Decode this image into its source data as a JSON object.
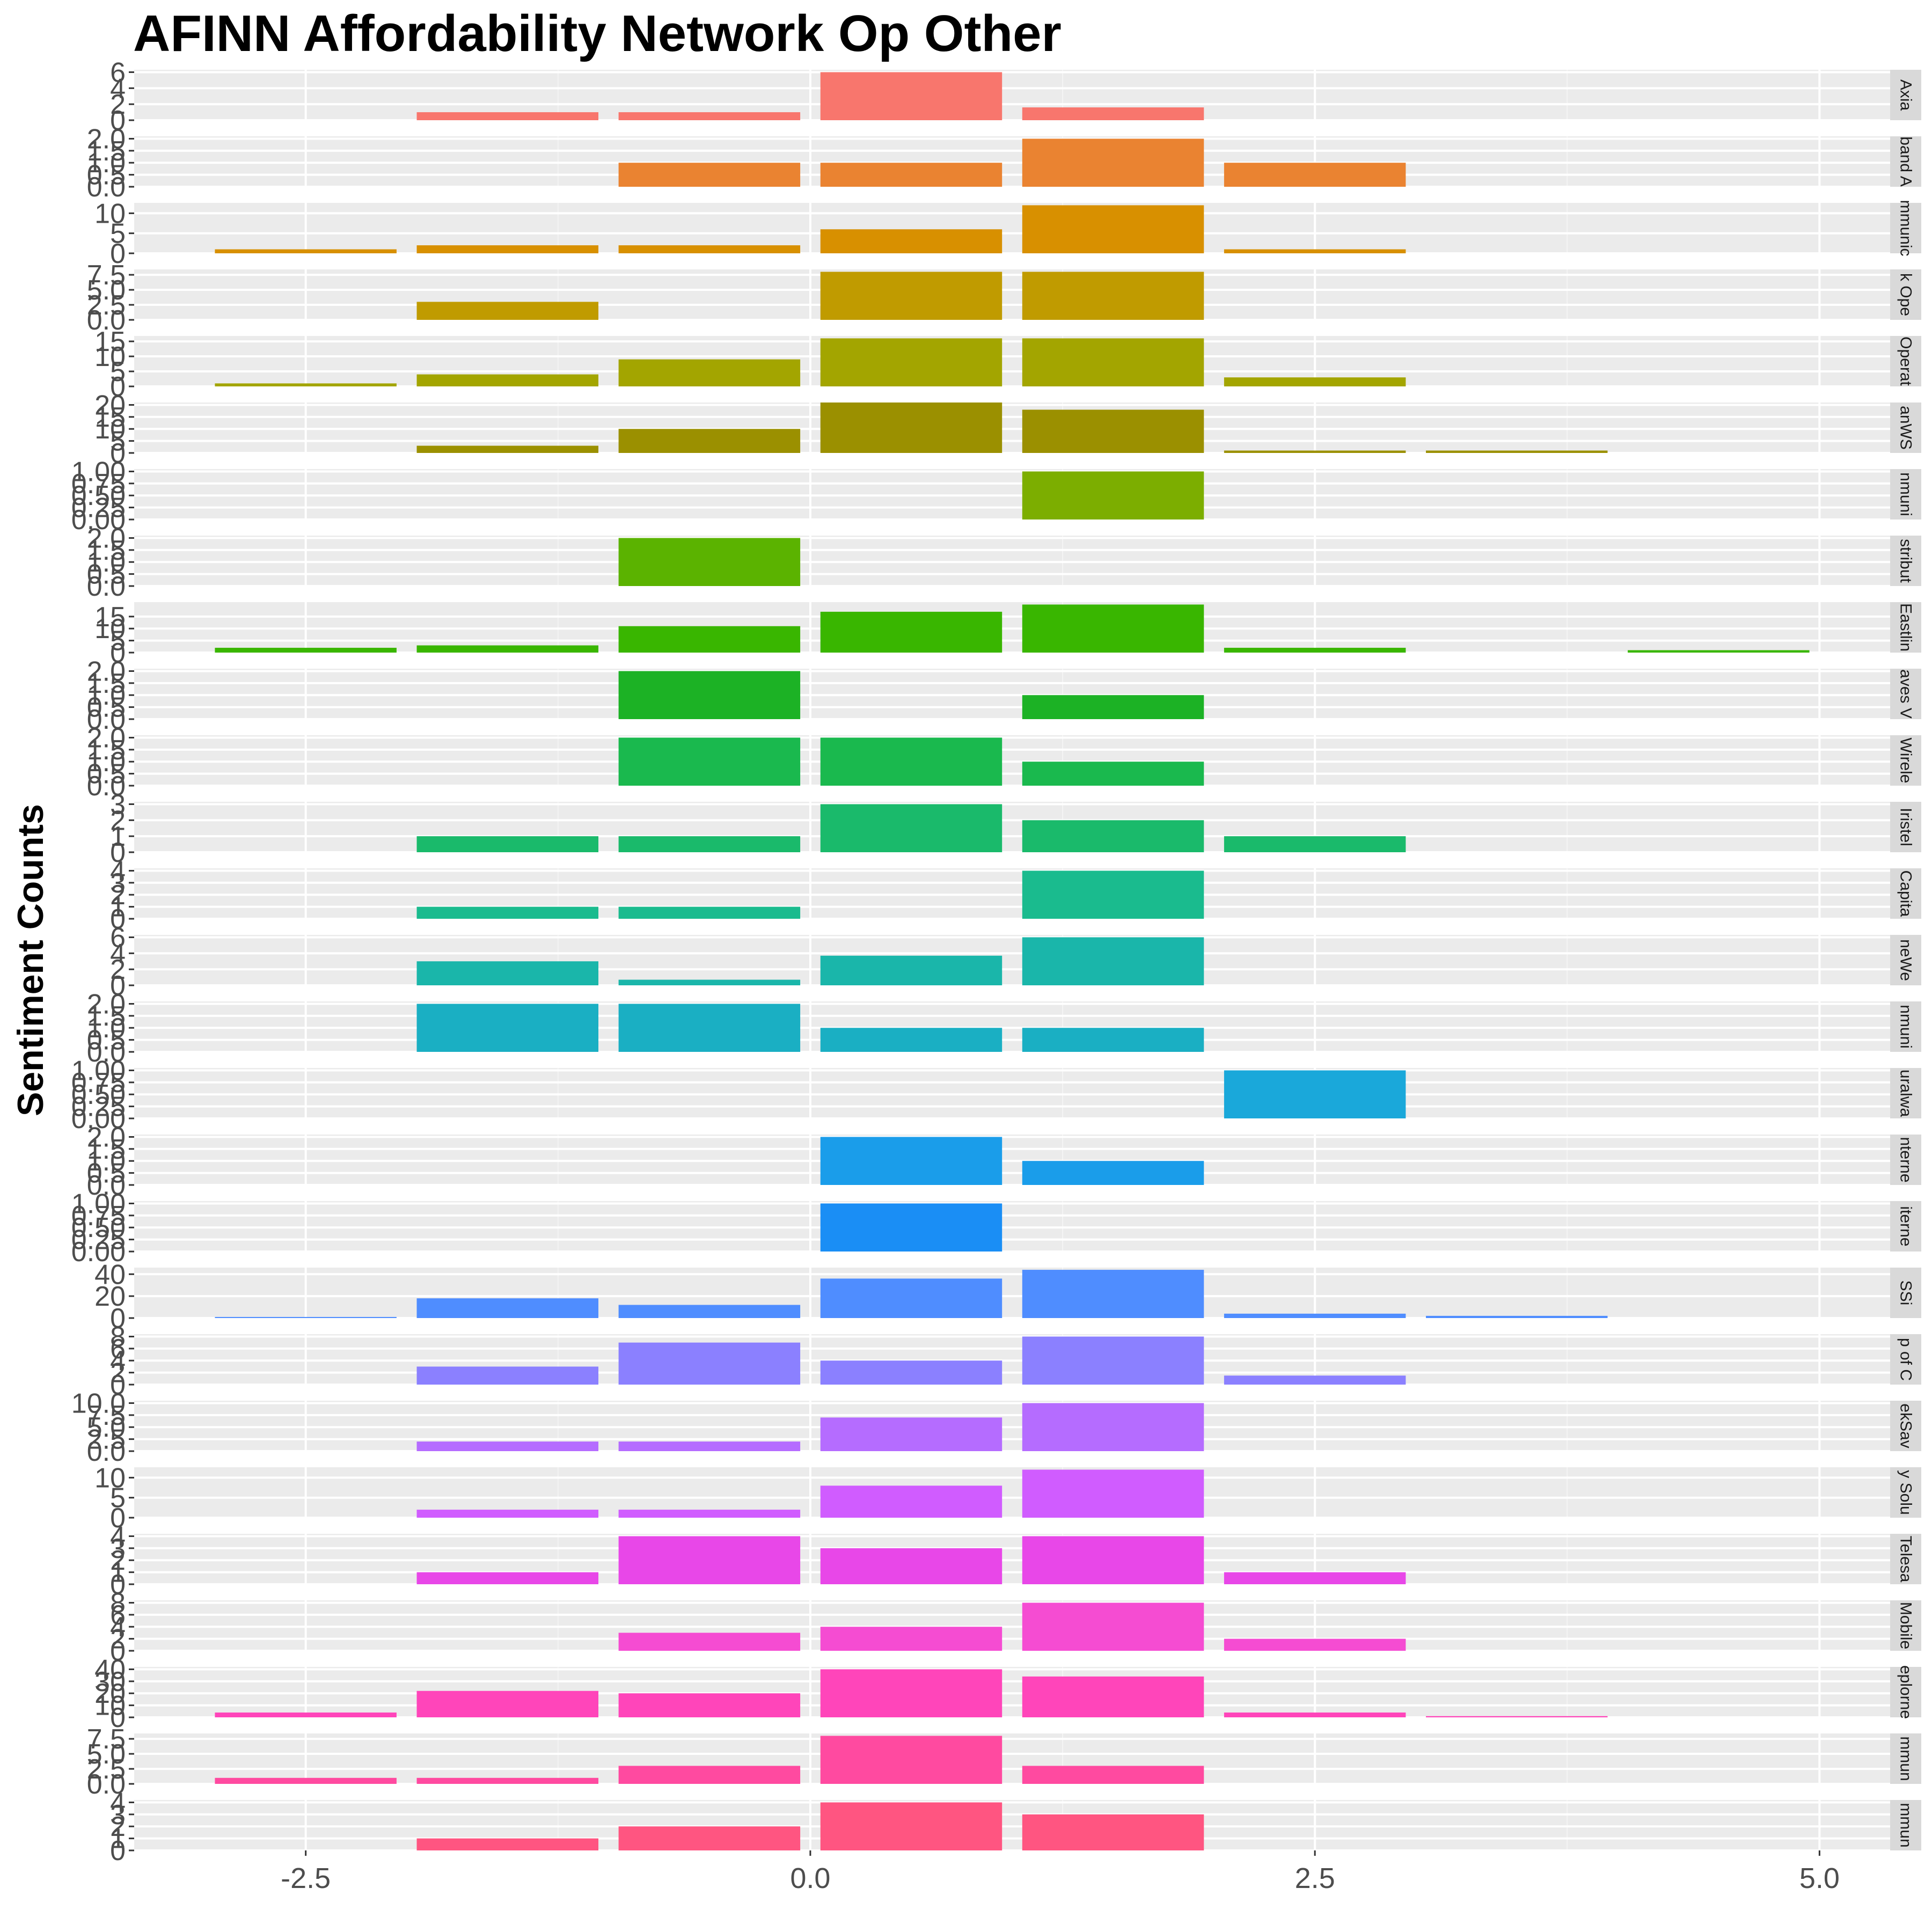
{
  "title": "AFINN Affordability Network Op Other",
  "chart_data": {
    "type": "bar",
    "title": "AFINN Affordability Network Op Other",
    "xlabel": "",
    "ylabel": "Sentiment Counts",
    "x_ticks": [
      -2.5,
      0.0,
      2.5,
      5.0
    ],
    "x_tick_labels": [
      "-2.5",
      "0.0",
      "2.5",
      "5.0"
    ],
    "xlim": [
      -3.35,
      5.35
    ],
    "bar_width": 0.9,
    "grid": true,
    "legend": "none",
    "panels": [
      {
        "strip": "Axia",
        "color": "#F8766D",
        "ylim": [
          0,
          6.3
        ],
        "y_ticks": [
          0,
          2,
          4,
          6
        ],
        "y_tick_labels": [
          "0",
          "2",
          "4",
          "6"
        ],
        "points": [
          {
            "x": -1.5,
            "y": 1
          },
          {
            "x": -0.5,
            "y": 1
          },
          {
            "x": 0.5,
            "y": 6
          },
          {
            "x": 1.5,
            "y": 1.6
          }
        ]
      },
      {
        "strip": "band A",
        "color": "#EA8331",
        "ylim": [
          0,
          2.1
        ],
        "y_ticks": [
          0,
          0.5,
          1,
          1.5,
          2
        ],
        "y_tick_labels": [
          "0.0",
          "0.5",
          "1.0",
          "1.5",
          "2.0"
        ],
        "points": [
          {
            "x": -0.5,
            "y": 1
          },
          {
            "x": 0.5,
            "y": 1
          },
          {
            "x": 1.5,
            "y": 2
          },
          {
            "x": 2.5,
            "y": 1
          }
        ]
      },
      {
        "strip": "mmunic",
        "color": "#D89000",
        "ylim": [
          0,
          12.6
        ],
        "y_ticks": [
          0,
          5,
          10
        ],
        "y_tick_labels": [
          "0",
          "5",
          "10"
        ],
        "points": [
          {
            "x": -2.5,
            "y": 1
          },
          {
            "x": -1.5,
            "y": 2
          },
          {
            "x": -0.5,
            "y": 2
          },
          {
            "x": 0.5,
            "y": 6
          },
          {
            "x": 1.5,
            "y": 12
          },
          {
            "x": 2.5,
            "y": 1
          }
        ]
      },
      {
        "strip": "k Ope",
        "color": "#C09B00",
        "ylim": [
          0,
          8.4
        ],
        "y_ticks": [
          0,
          2.5,
          5,
          7.5
        ],
        "y_tick_labels": [
          "0.0",
          "2.5",
          "5.0",
          "7.5"
        ],
        "points": [
          {
            "x": -1.5,
            "y": 3
          },
          {
            "x": 0.5,
            "y": 8
          },
          {
            "x": 1.5,
            "y": 8
          }
        ]
      },
      {
        "strip": "Operat",
        "color": "#A3A500",
        "ylim": [
          0,
          16.8
        ],
        "y_ticks": [
          0,
          5,
          10,
          15
        ],
        "y_tick_labels": [
          "0",
          "5",
          "10",
          "15"
        ],
        "points": [
          {
            "x": -2.5,
            "y": 1
          },
          {
            "x": -1.5,
            "y": 4
          },
          {
            "x": -0.5,
            "y": 9
          },
          {
            "x": 0.5,
            "y": 16
          },
          {
            "x": 1.5,
            "y": 16
          },
          {
            "x": 2.5,
            "y": 3
          }
        ]
      },
      {
        "strip": "anWS",
        "color": "#9B9000",
        "ylim": [
          0,
          21
        ],
        "y_ticks": [
          0,
          5,
          10,
          15,
          20
        ],
        "y_tick_labels": [
          "0",
          "5",
          "10",
          "15",
          "20"
        ],
        "points": [
          {
            "x": -1.5,
            "y": 3
          },
          {
            "x": -0.5,
            "y": 10
          },
          {
            "x": 0.5,
            "y": 21
          },
          {
            "x": 1.5,
            "y": 18
          },
          {
            "x": 2.5,
            "y": 1
          },
          {
            "x": 3.5,
            "y": 1
          }
        ]
      },
      {
        "strip": "nmuni",
        "color": "#7CAE00",
        "ylim": [
          0,
          1.05
        ],
        "y_ticks": [
          0,
          0.25,
          0.5,
          0.75,
          1
        ],
        "y_tick_labels": [
          "0.00",
          "0.25",
          "0.50",
          "0.75",
          "1.00"
        ],
        "points": [
          {
            "x": 1.5,
            "y": 1
          }
        ]
      },
      {
        "strip": "stribut",
        "color": "#5BB300",
        "ylim": [
          0,
          2.1
        ],
        "y_ticks": [
          0,
          0.5,
          1,
          1.5,
          2
        ],
        "y_tick_labels": [
          "0.0",
          "0.5",
          "1.0",
          "1.5",
          "2.0"
        ],
        "points": [
          {
            "x": -0.5,
            "y": 2
          }
        ]
      },
      {
        "strip": "Eastlin",
        "color": "#39B600",
        "ylim": [
          0,
          21
        ],
        "y_ticks": [
          0,
          5,
          10,
          15
        ],
        "y_tick_labels": [
          "0",
          "5",
          "10",
          "15"
        ],
        "points": [
          {
            "x": -2.5,
            "y": 2
          },
          {
            "x": -1.5,
            "y": 3
          },
          {
            "x": -0.5,
            "y": 11
          },
          {
            "x": 0.5,
            "y": 17
          },
          {
            "x": 1.5,
            "y": 20
          },
          {
            "x": 2.5,
            "y": 2
          },
          {
            "x": 4.5,
            "y": 1
          }
        ]
      },
      {
        "strip": "aves V",
        "color": "#1CB225",
        "ylim": [
          0,
          2.1
        ],
        "y_ticks": [
          0,
          0.5,
          1,
          1.5,
          2
        ],
        "y_tick_labels": [
          "0.0",
          "0.5",
          "1.0",
          "1.5",
          "2.0"
        ],
        "points": [
          {
            "x": -0.5,
            "y": 2
          },
          {
            "x": 1.5,
            "y": 1
          }
        ]
      },
      {
        "strip": "Wirele",
        "color": "#1AB94E",
        "ylim": [
          0,
          2.1
        ],
        "y_ticks": [
          0,
          0.5,
          1,
          1.5,
          2
        ],
        "y_tick_labels": [
          "0.0",
          "0.5",
          "1.0",
          "1.5",
          "2.0"
        ],
        "points": [
          {
            "x": -0.5,
            "y": 2
          },
          {
            "x": 0.5,
            "y": 2
          },
          {
            "x": 1.5,
            "y": 1
          }
        ]
      },
      {
        "strip": "Iristel",
        "color": "#1ABA6B",
        "ylim": [
          0,
          3.15
        ],
        "y_ticks": [
          0,
          1,
          2,
          3
        ],
        "y_tick_labels": [
          "0",
          "1",
          "2",
          "3"
        ],
        "points": [
          {
            "x": -1.5,
            "y": 1
          },
          {
            "x": -0.5,
            "y": 1
          },
          {
            "x": 0.5,
            "y": 3
          },
          {
            "x": 1.5,
            "y": 2
          },
          {
            "x": 2.5,
            "y": 1
          }
        ]
      },
      {
        "strip": "Capita",
        "color": "#1ABB8E",
        "ylim": [
          0,
          4.2
        ],
        "y_ticks": [
          0,
          1,
          2,
          3,
          4
        ],
        "y_tick_labels": [
          "0",
          "1",
          "2",
          "3",
          "4"
        ],
        "points": [
          {
            "x": -1.5,
            "y": 1
          },
          {
            "x": -0.5,
            "y": 1
          },
          {
            "x": 1.5,
            "y": 4
          }
        ]
      },
      {
        "strip": "neWe",
        "color": "#1AB6AA",
        "ylim": [
          0,
          6.3
        ],
        "y_ticks": [
          0,
          2,
          4,
          6
        ],
        "y_tick_labels": [
          "0",
          "2",
          "4",
          "6"
        ],
        "points": [
          {
            "x": -1.5,
            "y": 3
          },
          {
            "x": -0.5,
            "y": 0.7
          },
          {
            "x": 0.5,
            "y": 3.7
          },
          {
            "x": 1.5,
            "y": 6
          }
        ]
      },
      {
        "strip": "nmuni",
        "color": "#1AAFC3",
        "ylim": [
          0,
          2.1
        ],
        "y_ticks": [
          0,
          0.5,
          1,
          1.5,
          2
        ],
        "y_tick_labels": [
          "0.0",
          "0.5",
          "1.0",
          "1.5",
          "2.0"
        ],
        "points": [
          {
            "x": -1.5,
            "y": 2
          },
          {
            "x": -0.5,
            "y": 2
          },
          {
            "x": 0.5,
            "y": 1
          },
          {
            "x": 1.5,
            "y": 1
          }
        ]
      },
      {
        "strip": "uralwa",
        "color": "#1AA8DA",
        "ylim": [
          0,
          1.05
        ],
        "y_ticks": [
          0,
          0.25,
          0.5,
          0.75,
          1
        ],
        "y_tick_labels": [
          "0.00",
          "0.25",
          "0.50",
          "0.75",
          "1.00"
        ],
        "points": [
          {
            "x": 2.5,
            "y": 1
          }
        ]
      },
      {
        "strip": "nterne",
        "color": "#1A9DEA",
        "ylim": [
          0,
          2.1
        ],
        "y_ticks": [
          0,
          0.5,
          1,
          1.5,
          2
        ],
        "y_tick_labels": [
          "0.0",
          "0.5",
          "1.0",
          "1.5",
          "2.0"
        ],
        "points": [
          {
            "x": 0.5,
            "y": 2
          },
          {
            "x": 1.5,
            "y": 1
          }
        ]
      },
      {
        "strip": "iterne",
        "color": "#1A8EF5",
        "ylim": [
          0,
          1.05
        ],
        "y_ticks": [
          0,
          0.25,
          0.5,
          0.75,
          1
        ],
        "y_tick_labels": [
          "0.00",
          "0.25",
          "0.50",
          "0.75",
          "1.00"
        ],
        "points": [
          {
            "x": 0.5,
            "y": 1
          }
        ]
      },
      {
        "strip": "SSi",
        "color": "#4F8DFF",
        "ylim": [
          0,
          46
        ],
        "y_ticks": [
          0,
          20,
          40
        ],
        "y_tick_labels": [
          "0",
          "20",
          "40"
        ],
        "points": [
          {
            "x": -2.5,
            "y": 1
          },
          {
            "x": -1.5,
            "y": 18
          },
          {
            "x": -0.5,
            "y": 12
          },
          {
            "x": 0.5,
            "y": 36
          },
          {
            "x": 1.5,
            "y": 44
          },
          {
            "x": 2.5,
            "y": 4
          },
          {
            "x": 3.5,
            "y": 2
          }
        ]
      },
      {
        "strip": "p of C",
        "color": "#8B80FF",
        "ylim": [
          0,
          8.4
        ],
        "y_ticks": [
          0,
          2,
          4,
          6,
          8
        ],
        "y_tick_labels": [
          "0",
          "2",
          "4",
          "6",
          "8"
        ],
        "points": [
          {
            "x": -1.5,
            "y": 3
          },
          {
            "x": -0.5,
            "y": 7
          },
          {
            "x": 0.5,
            "y": 4
          },
          {
            "x": 1.5,
            "y": 8
          },
          {
            "x": 2.5,
            "y": 1.5
          }
        ]
      },
      {
        "strip": "ekSav",
        "color": "#B56CFF",
        "ylim": [
          0,
          10.5
        ],
        "y_ticks": [
          0,
          2.5,
          5,
          7.5,
          10
        ],
        "y_tick_labels": [
          "0.0",
          "2.5",
          "5.0",
          "7.5",
          "10.0"
        ],
        "points": [
          {
            "x": -1.5,
            "y": 2
          },
          {
            "x": -0.5,
            "y": 2
          },
          {
            "x": 0.5,
            "y": 7
          },
          {
            "x": 1.5,
            "y": 10
          }
        ]
      },
      {
        "strip": "y Solu",
        "color": "#D05CFF",
        "ylim": [
          0,
          12.6
        ],
        "y_ticks": [
          0,
          5,
          10
        ],
        "y_tick_labels": [
          "0",
          "5",
          "10"
        ],
        "points": [
          {
            "x": -1.5,
            "y": 2
          },
          {
            "x": -0.5,
            "y": 2
          },
          {
            "x": 0.5,
            "y": 8
          },
          {
            "x": 1.5,
            "y": 12
          }
        ]
      },
      {
        "strip": "Telesa",
        "color": "#E847E8",
        "ylim": [
          0,
          4.2
        ],
        "y_ticks": [
          0,
          1,
          2,
          3,
          4
        ],
        "y_tick_labels": [
          "0",
          "1",
          "2",
          "3",
          "4"
        ],
        "points": [
          {
            "x": -1.5,
            "y": 1
          },
          {
            "x": -0.5,
            "y": 4
          },
          {
            "x": 0.5,
            "y": 3
          },
          {
            "x": 1.5,
            "y": 4
          },
          {
            "x": 2.5,
            "y": 1
          }
        ]
      },
      {
        "strip": "Mobile",
        "color": "#F54CD2",
        "ylim": [
          0,
          8.4
        ],
        "y_ticks": [
          0,
          2,
          4,
          6,
          8
        ],
        "y_tick_labels": [
          "0",
          "2",
          "4",
          "6",
          "8"
        ],
        "points": [
          {
            "x": -0.5,
            "y": 3
          },
          {
            "x": 0.5,
            "y": 4
          },
          {
            "x": 1.5,
            "y": 8
          },
          {
            "x": 2.5,
            "y": 2
          }
        ]
      },
      {
        "strip": "eplorne",
        "color": "#FF45BA",
        "ylim": [
          0,
          42
        ],
        "y_ticks": [
          0,
          10,
          20,
          30,
          40
        ],
        "y_tick_labels": [
          "0",
          "10",
          "20",
          "30",
          "40"
        ],
        "points": [
          {
            "x": -2.5,
            "y": 4
          },
          {
            "x": -1.5,
            "y": 22
          },
          {
            "x": -0.5,
            "y": 20
          },
          {
            "x": 0.5,
            "y": 40
          },
          {
            "x": 1.5,
            "y": 34
          },
          {
            "x": 2.5,
            "y": 4
          },
          {
            "x": 3.5,
            "y": 1
          }
        ]
      },
      {
        "strip": "mmun",
        "color": "#FF4AA0",
        "ylim": [
          0,
          8.4
        ],
        "y_ticks": [
          0,
          2.5,
          5,
          7.5
        ],
        "y_tick_labels": [
          "0.0",
          "2.5",
          "5.0",
          "7.5"
        ],
        "points": [
          {
            "x": -2.5,
            "y": 1
          },
          {
            "x": -1.5,
            "y": 1
          },
          {
            "x": -0.5,
            "y": 3
          },
          {
            "x": 0.5,
            "y": 8
          },
          {
            "x": 1.5,
            "y": 3
          }
        ]
      },
      {
        "strip": "mmun",
        "color": "#FF5581",
        "ylim": [
          0,
          4.2
        ],
        "y_ticks": [
          0,
          1,
          2,
          3,
          4
        ],
        "y_tick_labels": [
          "0",
          "1",
          "2",
          "3",
          "4"
        ],
        "points": [
          {
            "x": -1.5,
            "y": 1
          },
          {
            "x": -0.5,
            "y": 2
          },
          {
            "x": 0.5,
            "y": 4
          },
          {
            "x": 1.5,
            "y": 3
          }
        ]
      }
    ]
  }
}
